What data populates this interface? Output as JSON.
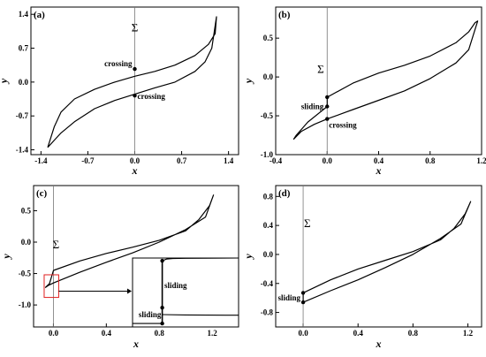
{
  "figure": {
    "sigma_symbol": "Σ"
  },
  "chart_data": [
    {
      "panel": "(a)",
      "type": "line",
      "xlabel": "x",
      "ylabel": "y",
      "xlim": [
        -1.55,
        1.55
      ],
      "ylim": [
        -1.5,
        1.55
      ],
      "xticks": [
        -1.4,
        -0.7,
        0.0,
        0.7,
        1.4
      ],
      "xtick_labels": [
        "-1.4",
        "-0.7",
        "0.0",
        "0.7",
        "1.4"
      ],
      "yticks": [
        -1.4,
        -0.7,
        0.0,
        0.7,
        1.4
      ],
      "ytick_labels": [
        "-1.4",
        "-0.7",
        "0.0",
        "0.7",
        "1.4"
      ],
      "switching_line_x": 0.0,
      "sigma_label": "Σ",
      "sigma_pos": [
        0.0,
        1.05
      ],
      "series": [
        {
          "x": [
            -1.3,
            -1.2,
            -1.1,
            -0.9,
            -0.6,
            -0.3,
            0.0,
            0.3,
            0.6,
            0.9,
            1.05,
            1.15,
            1.22,
            1.2,
            1.1,
            0.9,
            0.6,
            0.3,
            0.0,
            -0.3,
            -0.6,
            -0.9,
            -1.1,
            -1.2,
            -1.3
          ],
          "y": [
            -1.35,
            -1.2,
            -1.05,
            -0.82,
            -0.55,
            -0.38,
            -0.25,
            -0.12,
            0.0,
            0.22,
            0.42,
            0.7,
            1.35,
            1.0,
            0.78,
            0.55,
            0.35,
            0.22,
            0.12,
            0.0,
            -0.15,
            -0.35,
            -0.62,
            -0.92,
            -1.35
          ]
        }
      ],
      "points": [
        {
          "x": 0.0,
          "y": 0.27,
          "label": "crossing",
          "label_anchor": "end",
          "label_dx": -3,
          "label_dy": -3
        },
        {
          "x": 0.0,
          "y": -0.28,
          "label": "crossing",
          "label_anchor": "start",
          "label_dx": 3,
          "label_dy": 4
        }
      ]
    },
    {
      "panel": "(b)",
      "type": "line",
      "xlabel": "x",
      "ylabel": "y",
      "xlim": [
        -0.4,
        1.2
      ],
      "ylim": [
        -1.0,
        0.9
      ],
      "xticks": [
        -0.4,
        0.0,
        0.4,
        0.8,
        1.2
      ],
      "xtick_labels": [
        "-0.4",
        "0.0",
        "0.4",
        "0.8",
        "1.2"
      ],
      "yticks": [
        -1.0,
        -0.5,
        0.0,
        0.5
      ],
      "ytick_labels": [
        "-1.0",
        "-0.5",
        "0.0",
        "0.5"
      ],
      "switching_line_x": 0.0,
      "sigma_label": "Σ",
      "sigma_pos": [
        -0.05,
        0.05
      ],
      "series": [
        {
          "x": [
            0.0,
            0.2,
            0.4,
            0.6,
            0.8,
            1.0,
            1.1,
            1.15,
            1.17,
            1.1,
            1.0,
            0.8,
            0.6,
            0.4,
            0.2,
            0.0,
            -0.1,
            -0.2,
            -0.26,
            -0.24,
            -0.15,
            0.0,
            0.0
          ],
          "y": [
            -0.26,
            -0.08,
            0.05,
            0.15,
            0.27,
            0.44,
            0.58,
            0.7,
            0.72,
            0.35,
            0.18,
            -0.02,
            -0.18,
            -0.3,
            -0.42,
            -0.54,
            -0.61,
            -0.7,
            -0.8,
            -0.75,
            -0.58,
            -0.38,
            -0.26
          ]
        }
      ],
      "points": [
        {
          "x": 0.0,
          "y": -0.26,
          "label": "",
          "label_anchor": "end",
          "label_dx": 0,
          "label_dy": 0
        },
        {
          "x": 0.0,
          "y": -0.38,
          "label": "sliding",
          "label_anchor": "end",
          "label_dx": -4,
          "label_dy": 3
        },
        {
          "x": 0.0,
          "y": -0.54,
          "label": "crossing",
          "label_anchor": "start",
          "label_dx": 2,
          "label_dy": 10
        }
      ]
    },
    {
      "panel": "(c)",
      "type": "line",
      "xlabel": "x",
      "ylabel": "y",
      "xlim": [
        -0.15,
        1.4
      ],
      "ylim": [
        -1.35,
        0.9
      ],
      "xticks": [
        0.0,
        0.4,
        0.8,
        1.2
      ],
      "xtick_labels": [
        "0.0",
        "0.4",
        "0.8",
        "1.2"
      ],
      "yticks": [
        -1.0,
        -0.5,
        0.0,
        0.5
      ],
      "ytick_labels": [
        "-1.0",
        "-0.5",
        "0.0",
        "0.5"
      ],
      "switching_line_x": 0.0,
      "sigma_label": "Σ",
      "sigma_pos": [
        0.02,
        -0.1
      ],
      "series": [
        {
          "x": [
            0.0,
            0.2,
            0.4,
            0.6,
            0.8,
            1.0,
            1.1,
            1.18,
            1.21,
            1.15,
            1.0,
            0.8,
            0.6,
            0.4,
            0.2,
            0.0,
            -0.04,
            -0.06,
            -0.03,
            0.0
          ],
          "y": [
            -0.45,
            -0.3,
            -0.18,
            -0.08,
            0.03,
            0.18,
            0.36,
            0.58,
            0.75,
            0.4,
            0.2,
            0.0,
            -0.17,
            -0.32,
            -0.48,
            -0.65,
            -0.69,
            -0.72,
            -0.66,
            -0.45
          ]
        }
      ],
      "highlight_box": {
        "x0": -0.07,
        "x1": 0.04,
        "y0": -0.88,
        "y1": -0.52
      },
      "inset_target": {
        "x0": 0.72,
        "x1": 1.4,
        "y0": -1.35,
        "y1": -0.26
      },
      "inset_arrow_y": -0.78,
      "inset": {
        "xlim": [
          0.0,
          1.0
        ],
        "ylim": [
          0.0,
          1.0
        ],
        "vertical_x": 0.28,
        "upper_curve": {
          "x": [
            0.28,
            0.32,
            0.38,
            0.5,
            0.7,
            1.0
          ],
          "y": [
            0.96,
            0.985,
            0.992,
            0.996,
            0.998,
            1.0
          ]
        },
        "lower_curve": {
          "x": [
            0.28,
            0.5,
            0.7,
            1.0
          ],
          "y": [
            0.18,
            0.175,
            0.172,
            0.17
          ]
        },
        "stub": {
          "x": [
            0.0,
            0.28
          ],
          "y": [
            0.05,
            0.05
          ]
        },
        "points": [
          {
            "x": 0.28,
            "y": 0.96,
            "label": ""
          },
          {
            "x": 0.28,
            "y": 0.28,
            "label": ""
          },
          {
            "x": 0.28,
            "y": 0.05,
            "label": ""
          }
        ],
        "labels": [
          {
            "text": "sliding",
            "x": 0.3,
            "y": 0.6,
            "anchor": "start"
          },
          {
            "text": "sliding",
            "x": 0.27,
            "y": 0.18,
            "anchor": "end"
          }
        ]
      }
    },
    {
      "panel": "(d)",
      "type": "line",
      "xlabel": "x",
      "ylabel": "y",
      "xlim": [
        -0.2,
        1.3
      ],
      "ylim": [
        -1.0,
        0.95
      ],
      "xticks": [
        0.0,
        0.4,
        0.8,
        1.2
      ],
      "xtick_labels": [
        "0.0",
        "0.4",
        "0.8",
        "1.2"
      ],
      "yticks": [
        -0.8,
        -0.4,
        0.0,
        0.4,
        0.8
      ],
      "ytick_labels": [
        "-0.8",
        "-0.4",
        "0.0",
        "0.4",
        "0.8"
      ],
      "switching_line_x": 0.0,
      "sigma_label": "Σ",
      "sigma_pos": [
        0.03,
        0.38
      ],
      "series": [
        {
          "x": [
            0.0,
            0.2,
            0.4,
            0.6,
            0.8,
            1.0,
            1.1,
            1.18,
            1.22,
            1.15,
            1.0,
            0.8,
            0.6,
            0.4,
            0.2,
            0.0,
            0.0
          ],
          "y": [
            -0.53,
            -0.35,
            -0.2,
            -0.08,
            0.04,
            0.2,
            0.36,
            0.56,
            0.73,
            0.42,
            0.22,
            0.0,
            -0.18,
            -0.35,
            -0.5,
            -0.66,
            -0.53
          ]
        }
      ],
      "points": [
        {
          "x": 0.0,
          "y": -0.53,
          "label": "",
          "label_anchor": "end",
          "label_dx": 0,
          "label_dy": 0
        },
        {
          "x": 0.0,
          "y": -0.66,
          "label": "sliding",
          "label_anchor": "end",
          "label_dx": -3,
          "label_dy": -2
        }
      ]
    }
  ]
}
